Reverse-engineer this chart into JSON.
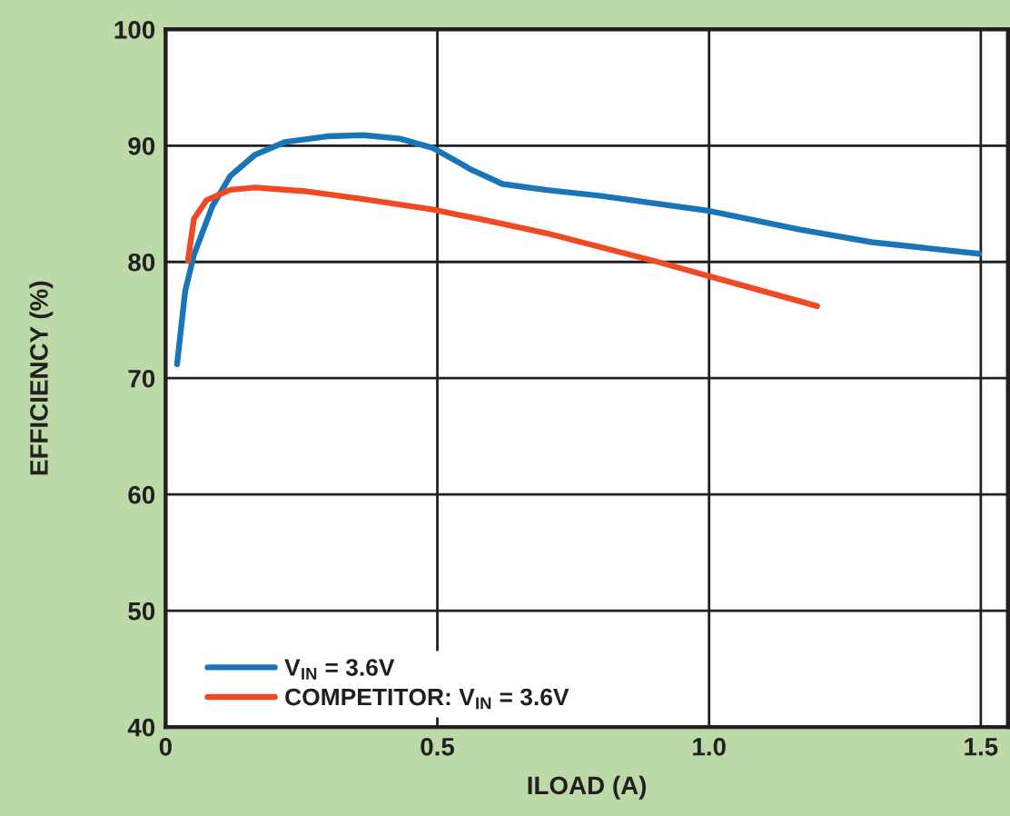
{
  "chart_data": {
    "type": "line",
    "xlabel": "ILOAD (A)",
    "ylabel": "EFFICIENCY (%)",
    "xlim": [
      0,
      1.55
    ],
    "xticks": [
      0,
      0.5,
      {
        "value": 1,
        "label": "1.0"
      },
      1.5
    ],
    "ylim": [
      40,
      100
    ],
    "yticks": [
      40,
      50,
      60,
      70,
      80,
      90,
      100
    ],
    "grid": true,
    "legend": "bottom left",
    "marker": "none",
    "line_style": "solid",
    "series": [
      {
        "name": "V$_{IN}$ = 3.6V",
        "color": "#1a75b8",
        "x": [
          0.021,
          0.036,
          0.052,
          0.086,
          0.119,
          0.164,
          0.219,
          0.297,
          0.364,
          0.431,
          0.492,
          0.564,
          0.62,
          0.698,
          0.798,
          0.998,
          1.165,
          1.299,
          1.497
        ],
        "values": [
          71.2,
          77.5,
          80.6,
          84.8,
          87.4,
          89.2,
          90.3,
          90.8,
          90.9,
          90.6,
          89.8,
          87.9,
          86.7,
          86.2,
          85.7,
          84.4,
          82.8,
          81.7,
          80.7
        ]
      },
      {
        "name": "COMPETITOR: V$_{IN}$ = 3.6V",
        "color": "#f04a25",
        "x": [
          0.041,
          0.052,
          0.075,
          0.119,
          0.164,
          0.253,
          0.364,
          0.492,
          0.587,
          0.698,
          0.898,
          0.998,
          1.199
        ],
        "values": [
          80.1,
          83.7,
          85.3,
          86.2,
          86.4,
          86.1,
          85.4,
          84.5,
          83.6,
          82.5,
          80.1,
          78.8,
          76.2
        ]
      }
    ]
  }
}
